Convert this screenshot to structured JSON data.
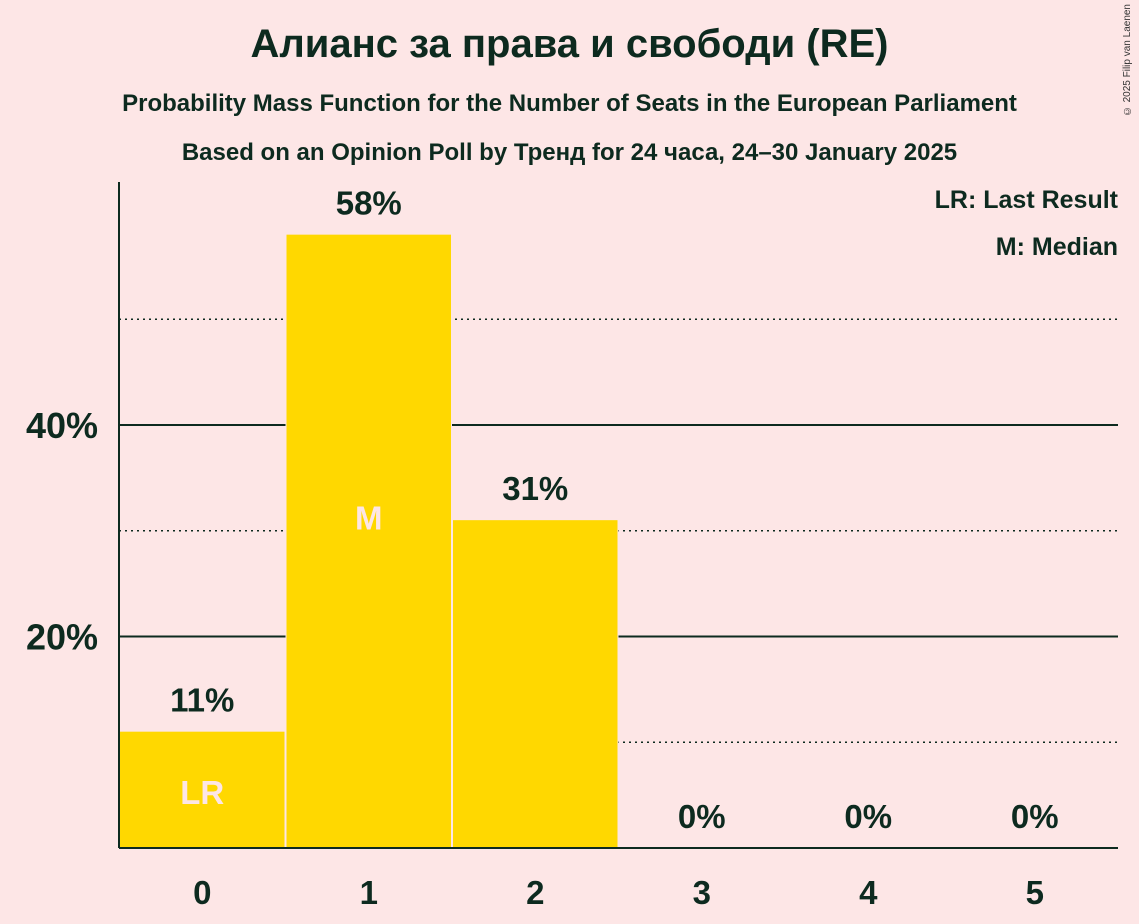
{
  "title": "Алианс за права и свободи (RE)",
  "subtitle1": "Probability Mass Function for the Number of Seats in the European Parliament",
  "subtitle2": "Based on an Opinion Poll by Тренд for 24 часа, 24–30 January 2025",
  "copyright": "© 2025 Filip van Laenen",
  "legend": {
    "lr": "LR: Last Result",
    "median": "M: Median"
  },
  "colors": {
    "bar": "#FFD800",
    "background": "#FDE6E6",
    "text": "#0D2A1F",
    "bar_label": "#FDE6E6"
  },
  "chart_data": {
    "type": "bar",
    "categories": [
      "0",
      "1",
      "2",
      "3",
      "4",
      "5"
    ],
    "values": [
      11,
      58,
      31,
      0,
      0,
      0
    ],
    "value_labels": [
      "11%",
      "58%",
      "31%",
      "0%",
      "0%",
      "0%"
    ],
    "bar_markers": [
      "LR",
      "M",
      "",
      "",
      "",
      ""
    ],
    "ylim": [
      0,
      63
    ],
    "yticks": [
      {
        "value": 20,
        "label": "20%"
      },
      {
        "value": 40,
        "label": "40%"
      }
    ],
    "minor_gridlines": [
      10,
      30,
      50
    ],
    "grid": true,
    "legend_position": "top-right"
  }
}
